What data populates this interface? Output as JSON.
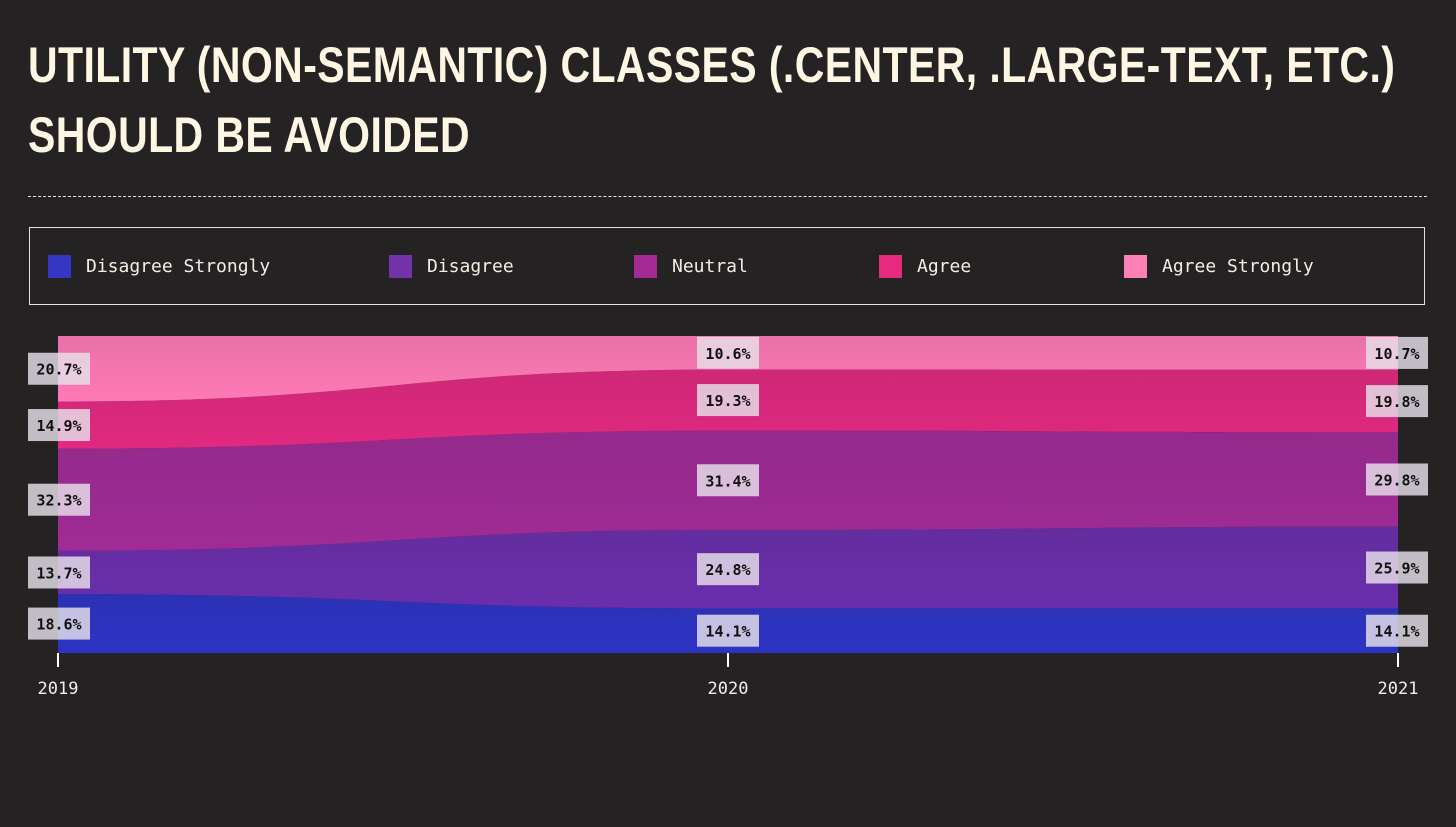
{
  "title_lines": [
    "UTILITY (NON-SEMANTIC) CLASSES (.CENTER, .LARGE-TEXT, ETC.)",
    "SHOULD BE AVOIDED"
  ],
  "colors": {
    "background": "#252223",
    "text": "#fdf6e3",
    "disagree_strongly": "#2d33c4",
    "disagree": "#6a2eac",
    "neutral": "#a02b96",
    "agree": "#e12980",
    "agree_strongly": "#ff7ab6",
    "label_box": "#e6e0ea"
  },
  "legend": [
    {
      "label": "Disagree Strongly",
      "color": "#3537c2"
    },
    {
      "label": "Disagree",
      "color": "#7232a8"
    },
    {
      "label": "Neutral",
      "color": "#a32a94"
    },
    {
      "label": "Agree",
      "color": "#e62a7e"
    },
    {
      "label": "Agree Strongly",
      "color": "#ff7fb7"
    }
  ],
  "chart_data": {
    "type": "area",
    "stacked": true,
    "normalized": true,
    "x": [
      "2019",
      "2020",
      "2021"
    ],
    "series": [
      {
        "name": "Disagree Strongly",
        "values": [
          18.6,
          14.1,
          14.1
        ],
        "labels": [
          "18.6%",
          "14.1%",
          "14.1%"
        ]
      },
      {
        "name": "Disagree",
        "values": [
          13.7,
          24.8,
          25.9
        ],
        "labels": [
          "13.7%",
          "24.8%",
          "25.9%"
        ]
      },
      {
        "name": "Neutral",
        "values": [
          32.3,
          31.4,
          29.8
        ],
        "labels": [
          "32.3%",
          "31.4%",
          "29.8%"
        ]
      },
      {
        "name": "Agree",
        "values": [
          14.9,
          19.3,
          19.8
        ],
        "labels": [
          "14.9%",
          "19.3%",
          "19.8%"
        ]
      },
      {
        "name": "Agree Strongly",
        "values": [
          20.7,
          10.6,
          10.7
        ],
        "labels": [
          "20.7%",
          "10.6%",
          "10.7%"
        ]
      }
    ],
    "legend_position": "top",
    "grid": false
  }
}
